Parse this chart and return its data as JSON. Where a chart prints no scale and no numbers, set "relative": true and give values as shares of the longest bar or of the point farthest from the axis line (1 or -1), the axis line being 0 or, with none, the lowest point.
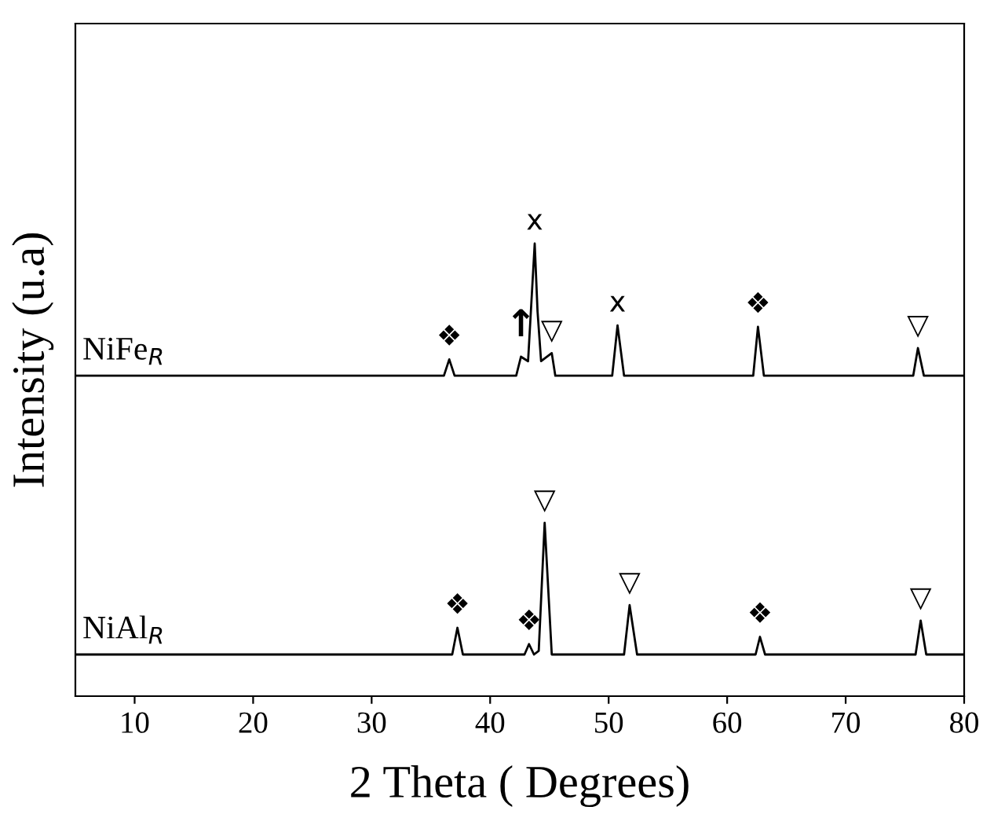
{
  "chart_data": {
    "type": "line",
    "relative": true,
    "xlabel": "2 Theta ( Degrees)",
    "ylabel": "Intensity (u.a)",
    "xlim": [
      5,
      80
    ],
    "xticks": [
      10,
      20,
      30,
      40,
      50,
      60,
      70,
      80
    ],
    "grid": false,
    "legend": false,
    "marker": "none",
    "line_style": "solid",
    "series": [
      {
        "name": "NiFe$_{R}$",
        "color": "#000000",
        "x": [
          5,
          36.1,
          36.55,
          37.0,
          42.2,
          42.6,
          43.2,
          43.76,
          44.0,
          44.3,
          45.2,
          45.5,
          50.3,
          50.75,
          51.3,
          62.2,
          62.6,
          63.1,
          75.7,
          76.1,
          76.6,
          80
        ],
        "values": [
          0.708,
          0.708,
          0.744,
          0.708,
          0.708,
          0.75,
          0.74,
          1.0,
          0.85,
          0.74,
          0.758,
          0.708,
          0.708,
          0.819,
          0.708,
          0.708,
          0.816,
          0.708,
          0.708,
          0.769,
          0.708,
          0.708
        ]
      },
      {
        "name": "NiAl$_{R}$",
        "color": "#000000",
        "x": [
          5,
          36.8,
          37.24,
          37.7,
          42.9,
          43.28,
          43.7,
          44.1,
          44.6,
          45.2,
          51.3,
          51.77,
          52.4,
          62.4,
          62.77,
          63.2,
          75.9,
          76.33,
          76.8,
          80
        ],
        "values": [
          0.092,
          0.092,
          0.151,
          0.092,
          0.092,
          0.115,
          0.092,
          0.1,
          0.383,
          0.092,
          0.092,
          0.201,
          0.092,
          0.092,
          0.131,
          0.092,
          0.092,
          0.167,
          0.092,
          0.092
        ]
      }
    ],
    "annotations": [
      {
        "text": "❖",
        "x": 36.55,
        "y": 0.744
      },
      {
        "text": "↑",
        "x": 42.6,
        "y": 0.75
      },
      {
        "text": "▽",
        "x": 45.2,
        "y": 0.758
      },
      {
        "text": "x",
        "x": 43.76,
        "y": 1.0
      },
      {
        "text": "x",
        "x": 50.75,
        "y": 0.819
      },
      {
        "text": "❖",
        "x": 62.6,
        "y": 0.816
      },
      {
        "text": "▽",
        "x": 76.1,
        "y": 0.769
      },
      {
        "text": "❖",
        "x": 37.24,
        "y": 0.151
      },
      {
        "text": "❖",
        "x": 43.28,
        "y": 0.115
      },
      {
        "text": "▽",
        "x": 44.6,
        "y": 0.383
      },
      {
        "text": "▽",
        "x": 51.77,
        "y": 0.201
      },
      {
        "text": "❖",
        "x": 62.77,
        "y": 0.131
      },
      {
        "text": "▽",
        "x": 76.33,
        "y": 0.167
      }
    ]
  }
}
